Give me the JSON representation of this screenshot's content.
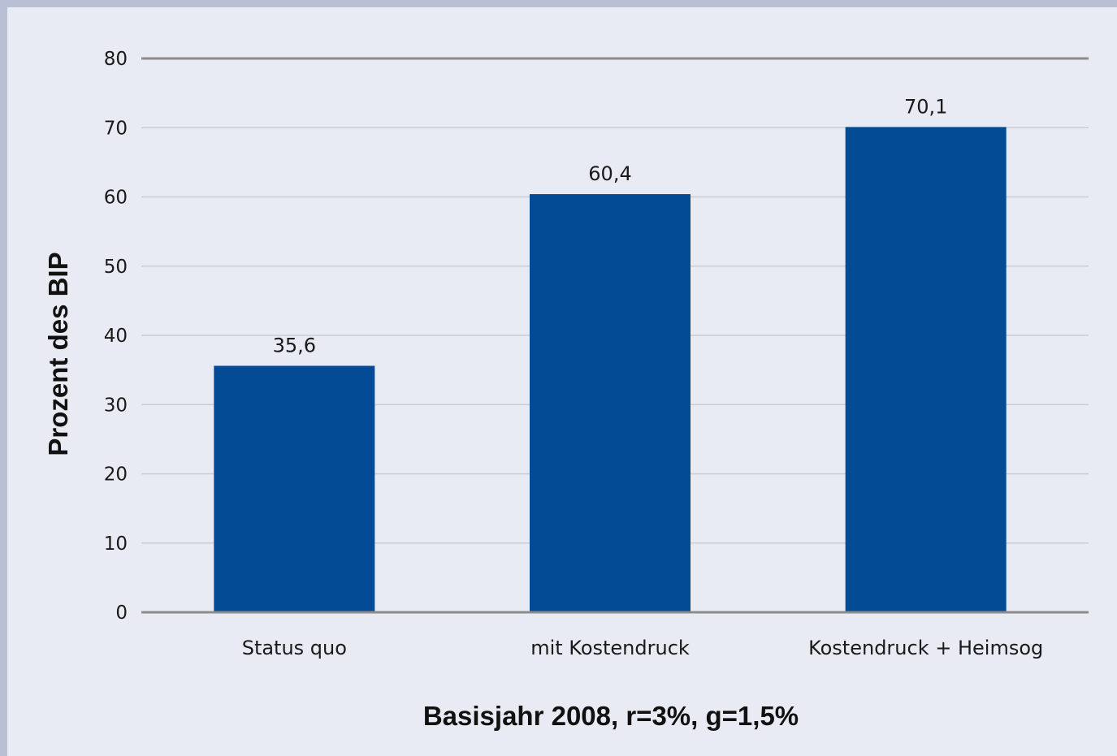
{
  "chart_data": {
    "type": "bar",
    "categories": [
      "Status quo",
      "mit Kostendruck",
      "Kostendruck + Heimsog"
    ],
    "values": [
      35.6,
      60.4,
      70.1
    ],
    "value_labels": [
      "35,6",
      "60,4",
      "70,1"
    ],
    "title": "",
    "xlabel": "Basisjahr 2008, r=3%, g=1,5%",
    "ylabel": "Prozent des BIP",
    "ylim": [
      0,
      80
    ],
    "yticks": [
      0,
      10,
      20,
      30,
      40,
      50,
      60,
      70,
      80
    ],
    "ytick_labels": [
      "0",
      "10",
      "20",
      "30",
      "40",
      "50",
      "60",
      "70",
      "80"
    ],
    "grid": true,
    "legend": "none",
    "colors": {
      "bar": "#034b94",
      "background": "#e8ebf3",
      "frame": "#b9c0d6",
      "gridline": "#c9ccd4",
      "axis": "#8c8c8c"
    }
  }
}
